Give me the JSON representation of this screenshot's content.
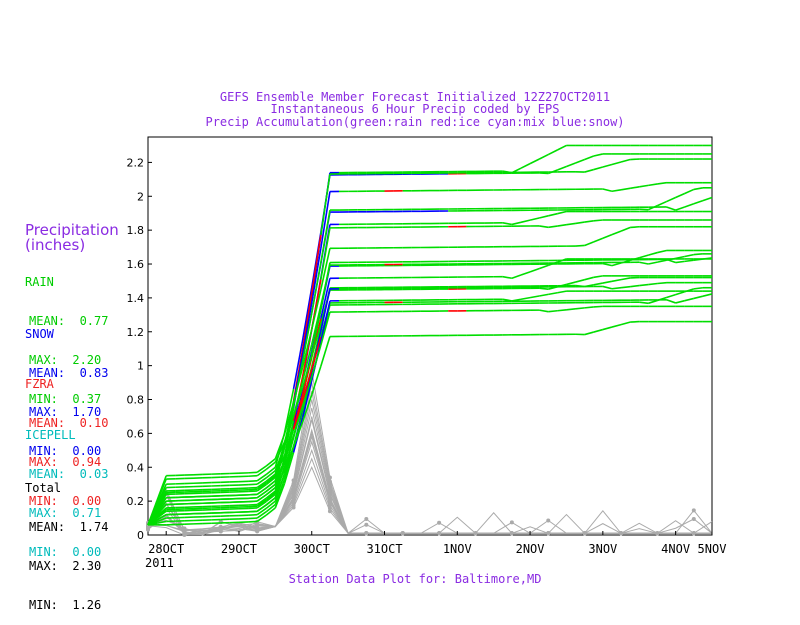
{
  "chart_data": {
    "type": "line",
    "title": [
      "GEFS Ensemble Member Forecast Initialized 12Z27OCT2011",
      "Instantaneous 6 Hour Precip coded by EPS",
      "Precip Accumulation(green:rain red:ice cyan:mix blue:snow)"
    ],
    "footer": "Station Data Plot for: Baltimore,MD",
    "ylabel": [
      "Precipitation",
      "(inches)"
    ],
    "ylim": [
      0,
      2.35
    ],
    "yticks": [
      "0",
      "0.2",
      "0.4",
      "0.6",
      "0.8",
      "1",
      "1.2",
      "1.4",
      "1.6",
      "1.8",
      "2",
      "2.2"
    ],
    "ytick_values": [
      0,
      0.2,
      0.4,
      0.6,
      0.8,
      1.0,
      1.2,
      1.4,
      1.6,
      1.8,
      2.0,
      2.2
    ],
    "xlim": [
      0,
      7.75
    ],
    "xticks": [
      "28OCT",
      "29OCT",
      "30OCT",
      "31OCT",
      "1NOV",
      "2NOV",
      "3NOV",
      "4NOV",
      "5NOV"
    ],
    "xtick_values": [
      0.25,
      1.25,
      2.25,
      3.25,
      4.25,
      5.25,
      6.25,
      7.25,
      8.0
    ],
    "xtick_sub": "2011",
    "colors": {
      "rain": "#00dd00",
      "snow": "#0000ff",
      "ice": "#ff0000",
      "mix": "#00cccc",
      "inst": "#aaaaaa",
      "text_purple": "#8a2be2"
    },
    "accumulation_finals": [
      2.3,
      2.25,
      2.22,
      2.08,
      2.05,
      2.03,
      1.91,
      1.86,
      1.82,
      1.68,
      1.66,
      1.65,
      1.63,
      1.53,
      1.52,
      1.49,
      1.46,
      1.45,
      1.44,
      1.35,
      1.26
    ],
    "accumulation_starts": [
      0.14,
      0.3,
      0.2,
      0.22,
      0.26,
      0.24,
      0.12,
      0.16,
      0.35,
      0.18,
      0.28,
      0.1,
      0.2,
      0.33,
      0.15,
      0.08,
      0.12,
      0.25,
      0.06,
      0.22,
      0.18
    ],
    "instantaneous_peaks": [
      0.55,
      0.6,
      0.7,
      0.75,
      0.8,
      0.9,
      0.97,
      0.45,
      0.5,
      0.62,
      0.68,
      0.85,
      0.58,
      0.4
    ]
  },
  "stats": {
    "rain": {
      "label": "RAIN",
      "mean": "MEAN:  0.77",
      "max": "MAX:  2.20",
      "min": "MIN:  0.37"
    },
    "snow": {
      "label": "SNOW",
      "mean": "MEAN:  0.83",
      "max": "MAX:  1.70",
      "min": "MIN:  0.00"
    },
    "fzra": {
      "label": "FZRA",
      "mean": "MEAN:  0.10",
      "max": "MAX:  0.94",
      "min": "MIN:  0.00"
    },
    "icepell": {
      "label": "ICEPELL",
      "mean": "MEAN:  0.03",
      "max": "MAX:  0.71",
      "min": "MIN:  0.00"
    },
    "total": {
      "label": "Total",
      "mean": "MEAN:  1.74",
      "max": "MAX:  2.30",
      "min": "MIN:  1.26"
    }
  }
}
